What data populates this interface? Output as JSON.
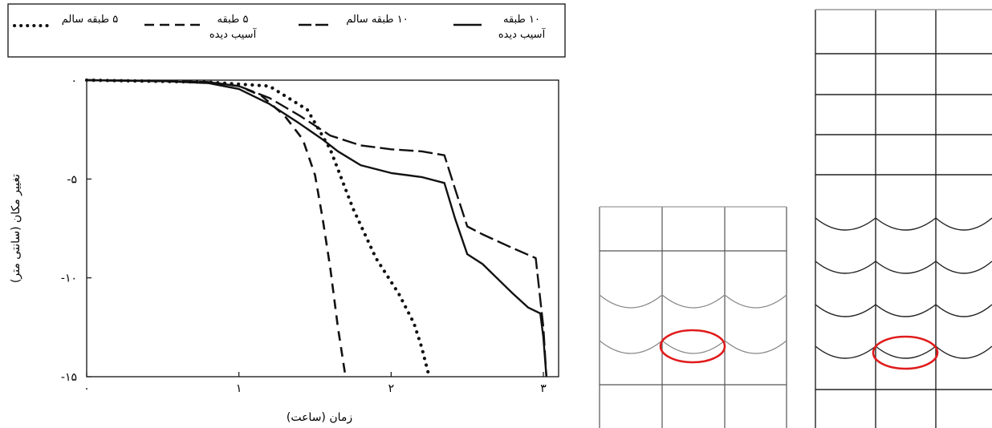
{
  "chart_data": {
    "type": "line",
    "title": "",
    "xlabel": "زمان (ساعت)",
    "ylabel": "تغییر مکان (سانتی متر)",
    "xlim": [
      0,
      3.1
    ],
    "ylim": [
      -15,
      0
    ],
    "x_ticks": [
      {
        "value": 0,
        "label": "۰"
      },
      {
        "value": 1,
        "label": "۱"
      },
      {
        "value": 2,
        "label": "۲"
      },
      {
        "value": 3,
        "label": "۳"
      }
    ],
    "y_ticks": [
      {
        "value": 0,
        "label": "۰"
      },
      {
        "value": -5,
        "label": "-۵"
      },
      {
        "value": -10,
        "label": "-۱۰"
      },
      {
        "value": -15,
        "label": "-۱۵"
      }
    ],
    "grid": false,
    "legend_position": "top",
    "series": [
      {
        "name_line1": "۱۰ طبقه",
        "name_line2": "آسیب دیده",
        "style": "solid",
        "x": [
          0,
          0.5,
          0.8,
          1.0,
          1.2,
          1.4,
          1.55,
          1.65,
          1.8,
          2.0,
          2.2,
          2.35,
          2.42,
          2.5,
          2.6,
          2.8,
          2.9,
          2.98,
          3.0,
          3.02
        ],
        "y": [
          0,
          -0.05,
          -0.15,
          -0.45,
          -1.2,
          -2.2,
          -3.0,
          -3.6,
          -4.3,
          -4.7,
          -4.9,
          -5.2,
          -7.0,
          -8.8,
          -9.3,
          -10.8,
          -11.5,
          -11.8,
          -13.0,
          -15.0
        ]
      },
      {
        "name_line1": "۱۰ طبقه سالم",
        "name_line2": "",
        "style": "longdash",
        "x": [
          0,
          0.5,
          0.8,
          1.0,
          1.2,
          1.4,
          1.6,
          1.8,
          2.0,
          2.2,
          2.35,
          2.42,
          2.5,
          2.6,
          2.8,
          2.95,
          3.0,
          3.02
        ],
        "y": [
          0,
          -0.05,
          -0.1,
          -0.3,
          -0.9,
          -1.8,
          -2.8,
          -3.3,
          -3.5,
          -3.6,
          -3.8,
          -5.5,
          -7.4,
          -7.8,
          -8.5,
          -9.0,
          -12.5,
          -15.0
        ]
      },
      {
        "name_line1": "۵ طبقه",
        "name_line2": "آسیب دیده",
        "style": "dash",
        "x": [
          0,
          0.5,
          0.8,
          1.0,
          1.15,
          1.3,
          1.42,
          1.5,
          1.55,
          1.6,
          1.65,
          1.7
        ],
        "y": [
          0,
          -0.05,
          -0.1,
          -0.3,
          -0.8,
          -1.8,
          -3.0,
          -4.8,
          -7.0,
          -9.5,
          -12.5,
          -15.0
        ]
      },
      {
        "name_line1": "۵ طبقه سالم",
        "name_line2": "",
        "style": "dotted",
        "x": [
          0,
          0.8,
          1.2,
          1.45,
          1.6,
          1.75,
          1.9,
          2.05,
          2.15,
          2.2,
          2.25
        ],
        "y": [
          0,
          -0.1,
          -0.3,
          -1.5,
          -3.5,
          -6.5,
          -9.0,
          -10.8,
          -12.3,
          -13.5,
          -15.0
        ]
      }
    ]
  },
  "diagrams": {
    "left_frame": {
      "bays": 3,
      "highlight": "red ellipse"
    },
    "right_frame": {
      "bays": 3,
      "highlight": "red ellipse"
    }
  }
}
